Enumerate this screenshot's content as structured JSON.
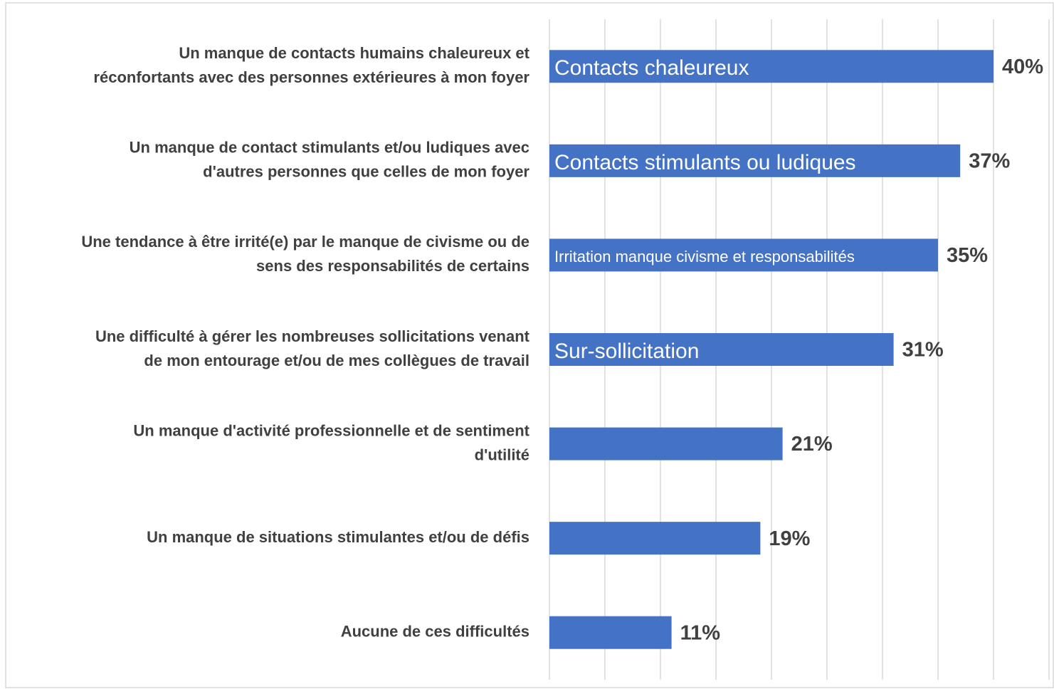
{
  "chart_data": {
    "type": "barh",
    "categories": [
      [
        "Un manque de contacts humains chaleureux et",
        "réconfortants avec des personnes extérieures à mon foyer"
      ],
      [
        "Un manque de contact stimulants et/ou ludiques avec",
        "d'autres personnes que celles de mon foyer"
      ],
      [
        "Une tendance à être irrité(e) par le manque de civisme ou de",
        "sens des responsabilités de certains"
      ],
      [
        "Une difficulté à gérer les nombreuses sollicitations venant",
        "de mon entourage et/ou de mes collègues de travail"
      ],
      [
        "Un manque d'activité professionnelle et de sentiment",
        "d'utilité"
      ],
      [
        "Un manque de situations stimulantes et/ou de défis"
      ],
      [
        "Aucune de ces difficultés"
      ]
    ],
    "values": [
      40,
      37,
      35,
      31,
      21,
      19,
      11
    ],
    "value_labels": [
      "40%",
      "37%",
      "35%",
      "31%",
      "21%",
      "19%",
      "11%"
    ],
    "bar_labels": [
      "Contacts chaleureux",
      "Contacts stimulants ou ludiques",
      "Irritation manque civisme et responsabilités",
      "Sur-sollicitation",
      null,
      null,
      null
    ],
    "color": "#4472c4",
    "xlim": [
      0,
      45
    ],
    "xticks": [
      0,
      5,
      10,
      15,
      20,
      25,
      30,
      35,
      40,
      45
    ],
    "grid": true
  }
}
